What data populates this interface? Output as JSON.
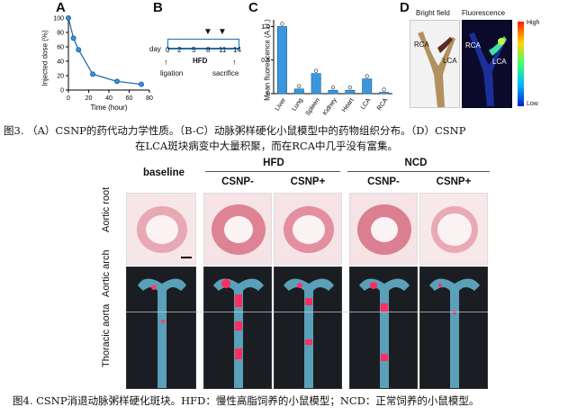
{
  "fig3": {
    "panelA": {
      "label": "A",
      "ylabel": "Injected dose (%)",
      "xlabel": "Time (hour)",
      "yticks": [
        "0",
        "20",
        "40",
        "60",
        "80",
        "100"
      ],
      "xticks": [
        "0",
        "20",
        "40",
        "60",
        "80"
      ]
    },
    "panelB": {
      "label": "B",
      "day_label": "day",
      "days": [
        "0",
        "2",
        "5",
        "8",
        "11",
        "14"
      ],
      "hfd": "HFD",
      "ligation": "ligation",
      "sacrifice": "sacrifice"
    },
    "panelC": {
      "label": "C",
      "ylabel": "Mean fluorescence (A.U.)",
      "yticks": [
        "0",
        "0.5",
        "1.0"
      ]
    },
    "panelD": {
      "label": "D",
      "bright_field": "Bright field",
      "fluorescence": "Fluorescence",
      "high": "High",
      "low": "Low",
      "rca": "RCA",
      "lca": "LCA"
    },
    "caption_line1": "图3. （A）CSNP的药代动力学性质。（B-C）动脉粥样硬化小鼠模型中的药物组织分布。（D）CSNP",
    "caption_line2": "在LCA斑块病变中大量积聚，而在RCA中几乎没有富集。"
  },
  "chart_data": [
    {
      "type": "line",
      "x": [
        0,
        5,
        10,
        24,
        48,
        72
      ],
      "y": [
        100,
        72,
        56,
        22,
        12,
        8
      ],
      "xlim": [
        0,
        80
      ],
      "ylim": [
        0,
        100
      ]
    },
    {
      "type": "bar",
      "categories": [
        "Liver",
        "Lung",
        "Spleen",
        "Kidney",
        "Heart",
        "LCA",
        "RCA"
      ],
      "values": [
        1.0,
        0.07,
        0.3,
        0.05,
        0.05,
        0.22,
        0.02
      ],
      "ylim": [
        0,
        1.1
      ],
      "color": "#3a97dd"
    }
  ],
  "fig4": {
    "baseline": "baseline",
    "hfd": "HFD",
    "ncd": "NCD",
    "csnp_minus": "CSNP-",
    "csnp_plus": "CSNP+",
    "row1": "Aortic root",
    "row2": "Aortic arch",
    "row3": "Thoracic aorta",
    "caption": "图4. CSNP消退动脉粥样硬化斑块。HFD：慢性高脂饲养的小鼠模型；NCD：正常饲养的小鼠模型。"
  }
}
